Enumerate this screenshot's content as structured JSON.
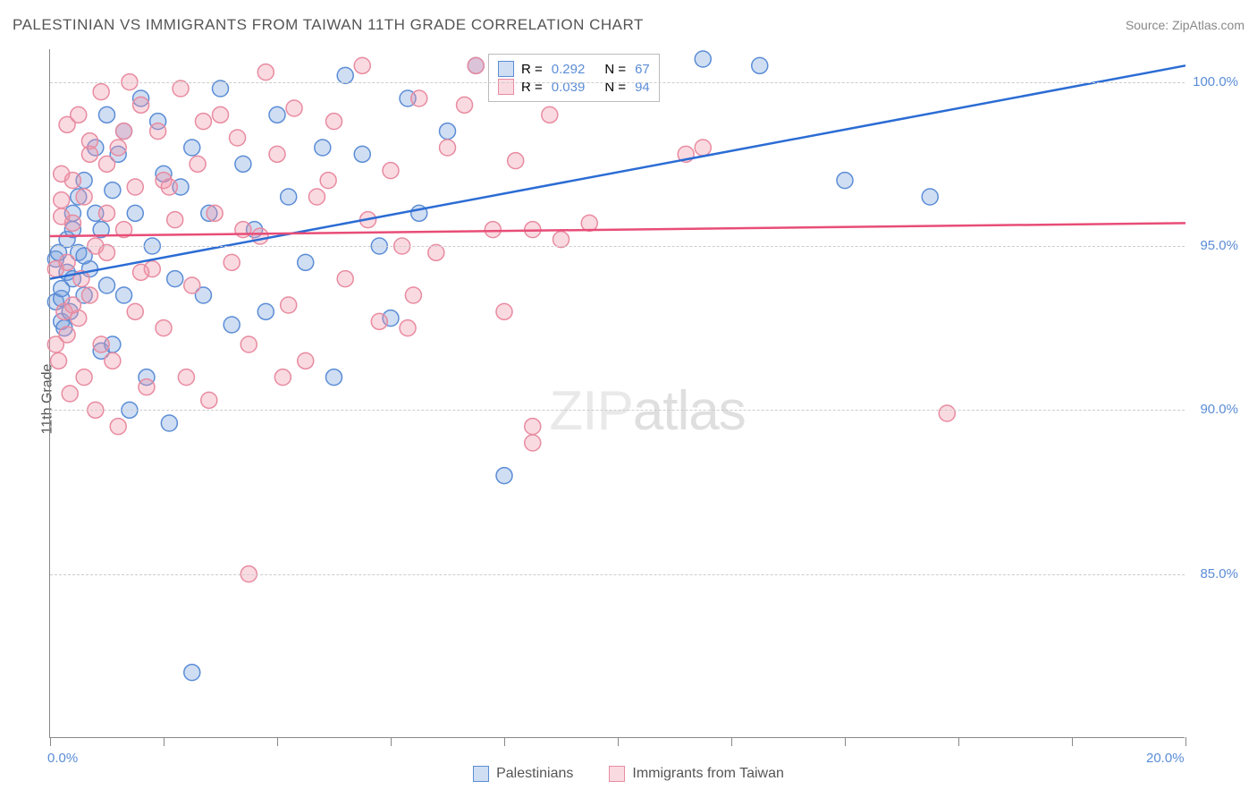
{
  "title": "PALESTINIAN VS IMMIGRANTS FROM TAIWAN 11TH GRADE CORRELATION CHART",
  "source": "Source: ZipAtlas.com",
  "y_axis_title": "11th Grade",
  "watermark_a": "ZIP",
  "watermark_b": "atlas",
  "chart": {
    "type": "scatter",
    "x_min": 0.0,
    "x_max": 20.0,
    "y_min": 80.0,
    "y_max": 101.0,
    "y_ticks": [
      85.0,
      90.0,
      95.0,
      100.0
    ],
    "y_tick_labels": [
      "85.0%",
      "90.0%",
      "95.0%",
      "100.0%"
    ],
    "x_ticks": [
      0.0,
      2.0,
      4.0,
      6.0,
      8.0,
      10.0,
      12.0,
      14.0,
      16.0,
      18.0,
      20.0
    ],
    "x_tick_labels_shown": {
      "0.0": "0.0%",
      "20.0": "20.0%"
    },
    "background_color": "#ffffff",
    "grid_color": "#cccccc",
    "axis_color": "#888888",
    "tick_label_color": "#5b8dd6",
    "marker_radius": 9,
    "marker_stroke_width": 1.5,
    "marker_opacity": 0.45,
    "line_width": 2.5
  },
  "series": [
    {
      "name": "Palestinians",
      "color_fill": "rgba(120,160,220,0.35)",
      "color_stroke": "#5b8dd6",
      "line_color": "#2b6cd4",
      "R": "0.292",
      "N": "67",
      "trend": {
        "x1": 0.0,
        "y1": 94.0,
        "x2": 20.0,
        "y2": 100.5
      },
      "points": [
        [
          0.1,
          93.3
        ],
        [
          0.1,
          94.6
        ],
        [
          0.15,
          94.8
        ],
        [
          0.2,
          92.7
        ],
        [
          0.2,
          93.4
        ],
        [
          0.2,
          93.7
        ],
        [
          0.25,
          92.5
        ],
        [
          0.3,
          94.2
        ],
        [
          0.3,
          95.2
        ],
        [
          0.35,
          93.0
        ],
        [
          0.4,
          95.5
        ],
        [
          0.4,
          96.0
        ],
        [
          0.5,
          94.8
        ],
        [
          0.5,
          96.5
        ],
        [
          0.6,
          93.5
        ],
        [
          0.6,
          97.0
        ],
        [
          0.7,
          94.3
        ],
        [
          0.8,
          96.0
        ],
        [
          0.8,
          98.0
        ],
        [
          0.9,
          91.8
        ],
        [
          0.9,
          95.5
        ],
        [
          1.0,
          99.0
        ],
        [
          1.1,
          92.0
        ],
        [
          1.1,
          96.7
        ],
        [
          1.2,
          97.8
        ],
        [
          1.3,
          93.5
        ],
        [
          1.3,
          98.5
        ],
        [
          1.4,
          90.0
        ],
        [
          1.5,
          96.0
        ],
        [
          1.6,
          99.5
        ],
        [
          1.7,
          91.0
        ],
        [
          1.8,
          95.0
        ],
        [
          1.9,
          98.8
        ],
        [
          2.0,
          97.2
        ],
        [
          2.1,
          89.6
        ],
        [
          2.2,
          94.0
        ],
        [
          2.3,
          96.8
        ],
        [
          2.5,
          82.0
        ],
        [
          2.5,
          98.0
        ],
        [
          2.7,
          93.5
        ],
        [
          2.8,
          96.0
        ],
        [
          3.0,
          99.8
        ],
        [
          3.2,
          92.6
        ],
        [
          3.4,
          97.5
        ],
        [
          3.6,
          95.5
        ],
        [
          3.8,
          93.0
        ],
        [
          4.0,
          99.0
        ],
        [
          4.2,
          96.5
        ],
        [
          4.5,
          94.5
        ],
        [
          4.8,
          98.0
        ],
        [
          5.0,
          91.0
        ],
        [
          5.2,
          100.2
        ],
        [
          5.5,
          97.8
        ],
        [
          5.8,
          95.0
        ],
        [
          6.0,
          92.8
        ],
        [
          6.3,
          99.5
        ],
        [
          6.5,
          96.0
        ],
        [
          7.0,
          98.5
        ],
        [
          7.5,
          100.5
        ],
        [
          8.0,
          88.0
        ],
        [
          12.5,
          100.5
        ],
        [
          14.0,
          97.0
        ],
        [
          15.5,
          96.5
        ],
        [
          11.5,
          100.7
        ],
        [
          1.0,
          93.8
        ],
        [
          0.4,
          94.0
        ],
        [
          0.6,
          94.7
        ]
      ]
    },
    {
      "name": "Immigrants from Taiwan",
      "color_fill": "rgba(240,150,170,0.35)",
      "color_stroke": "#e88ba0",
      "line_color": "#e84d77",
      "R": "0.039",
      "N": "94",
      "trend": {
        "x1": 0.0,
        "y1": 95.3,
        "x2": 20.0,
        "y2": 95.7
      },
      "points": [
        [
          0.1,
          92.0
        ],
        [
          0.1,
          94.3
        ],
        [
          0.15,
          91.5
        ],
        [
          0.2,
          95.9
        ],
        [
          0.2,
          97.2
        ],
        [
          0.25,
          93.0
        ],
        [
          0.3,
          92.3
        ],
        [
          0.3,
          94.5
        ],
        [
          0.3,
          98.7
        ],
        [
          0.35,
          90.5
        ],
        [
          0.4,
          95.7
        ],
        [
          0.4,
          97.0
        ],
        [
          0.5,
          92.8
        ],
        [
          0.5,
          99.0
        ],
        [
          0.55,
          94.0
        ],
        [
          0.6,
          91.0
        ],
        [
          0.6,
          96.5
        ],
        [
          0.7,
          98.2
        ],
        [
          0.7,
          93.5
        ],
        [
          0.8,
          90.0
        ],
        [
          0.8,
          95.0
        ],
        [
          0.9,
          99.7
        ],
        [
          0.9,
          92.0
        ],
        [
          1.0,
          97.5
        ],
        [
          1.0,
          94.8
        ],
        [
          1.1,
          91.5
        ],
        [
          1.2,
          98.0
        ],
        [
          1.2,
          89.5
        ],
        [
          1.3,
          95.5
        ],
        [
          1.4,
          100.0
        ],
        [
          1.5,
          93.0
        ],
        [
          1.5,
          96.8
        ],
        [
          1.6,
          99.3
        ],
        [
          1.7,
          90.7
        ],
        [
          1.8,
          94.3
        ],
        [
          1.9,
          98.5
        ],
        [
          2.0,
          92.5
        ],
        [
          2.0,
          97.0
        ],
        [
          2.2,
          95.8
        ],
        [
          2.3,
          99.8
        ],
        [
          2.4,
          91.0
        ],
        [
          2.5,
          93.8
        ],
        [
          2.6,
          97.5
        ],
        [
          2.8,
          90.3
        ],
        [
          2.9,
          96.0
        ],
        [
          3.0,
          99.0
        ],
        [
          3.2,
          94.5
        ],
        [
          3.3,
          98.3
        ],
        [
          3.5,
          92.0
        ],
        [
          3.5,
          85.0
        ],
        [
          3.7,
          95.3
        ],
        [
          3.8,
          100.3
        ],
        [
          4.0,
          97.8
        ],
        [
          4.2,
          93.2
        ],
        [
          4.3,
          99.2
        ],
        [
          4.5,
          91.5
        ],
        [
          4.7,
          96.5
        ],
        [
          5.0,
          98.8
        ],
        [
          5.2,
          94.0
        ],
        [
          5.5,
          100.5
        ],
        [
          5.8,
          92.7
        ],
        [
          6.0,
          97.3
        ],
        [
          6.2,
          95.0
        ],
        [
          6.3,
          92.5
        ],
        [
          6.5,
          99.5
        ],
        [
          6.8,
          94.8
        ],
        [
          7.0,
          98.0
        ],
        [
          7.5,
          100.5
        ],
        [
          7.8,
          95.5
        ],
        [
          8.0,
          93.0
        ],
        [
          8.2,
          97.6
        ],
        [
          8.5,
          89.5
        ],
        [
          8.5,
          95.5
        ],
        [
          8.8,
          99.0
        ],
        [
          8.5,
          89.0
        ],
        [
          9.0,
          95.2
        ],
        [
          9.5,
          95.7
        ],
        [
          11.2,
          97.8
        ],
        [
          11.5,
          98.0
        ],
        [
          15.8,
          89.9
        ],
        [
          0.2,
          96.4
        ],
        [
          0.4,
          93.2
        ],
        [
          0.7,
          97.8
        ],
        [
          1.0,
          96.0
        ],
        [
          1.3,
          98.5
        ],
        [
          1.6,
          94.2
        ],
        [
          2.1,
          96.8
        ],
        [
          2.7,
          98.8
        ],
        [
          3.4,
          95.5
        ],
        [
          4.1,
          91.0
        ],
        [
          4.9,
          97.0
        ],
        [
          5.6,
          95.8
        ],
        [
          6.4,
          93.5
        ],
        [
          7.3,
          99.3
        ]
      ]
    }
  ],
  "legend_box": {
    "r_label": "R =",
    "n_label": "N ="
  },
  "bottom_legend": {
    "series1": "Palestinians",
    "series2": "Immigrants from Taiwan"
  }
}
